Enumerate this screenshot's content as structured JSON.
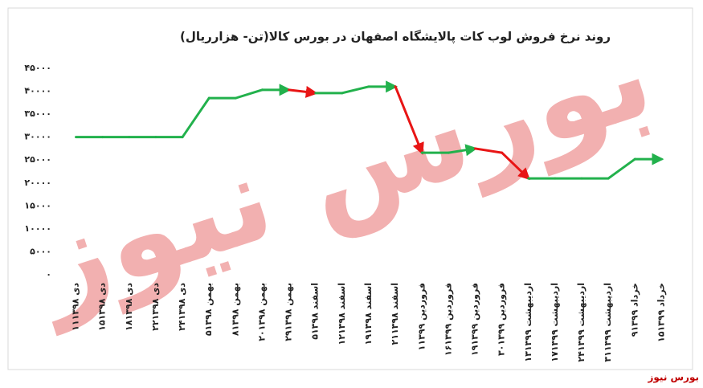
{
  "chart_data": {
    "type": "line",
    "title": "روند نرخ فروش لوب کات پالایشگاه اصفهان در بورس کالا(تن- هزارریال)",
    "watermark": "بورس نیوز",
    "source": "بورس نیوز",
    "categories": [
      "۱۱دی ۱۳۹۸",
      "۱۵دی ۱۳۹۸",
      "۱۸دی ۱۳۹۸",
      "۲۲دی ۱۳۹۸",
      "۲۴دی ۱۳۹۸",
      "۵بهمن ۱۳۹۸",
      "۸بهمن ۱۳۹۸",
      "۲۰بهمن ۱۳۹۸",
      "۲۹بهمن ۱۳۹۸",
      "۵اسفند ۱۳۹۸",
      "۱۲اسفند ۱۳۹۸",
      "۱۹اسفند ۱۳۹۸",
      "۲۱اسفند ۱۳۹۸",
      "۱فروردین ۱۳۹۹",
      "۱۶فروردین ۱۳۹۹",
      "۱۹فروردین ۱۳۹۹",
      "۳۰فروردین ۱۳۹۹",
      "۱۳اردیبهشت ۱۳۹۹",
      "۱۷اردیبهشت ۱۳۹۹",
      "۲۴اردیبهشت ۱۳۹۹",
      "۳۱اردیبهشت ۱۳۹۹",
      "۹خرداد ۱۳۹۹",
      "۱۵خرداد ۱۳۹۹"
    ],
    "values": [
      30000,
      30000,
      30000,
      30000,
      30000,
      38500,
      38500,
      40300,
      40300,
      39600,
      39600,
      41000,
      41000,
      26600,
      26600,
      27500,
      26600,
      21000,
      21000,
      21000,
      21000,
      25200,
      25200
    ],
    "color": "#22b14c",
    "decrease_color": "#e81515",
    "ylim": [
      0,
      45000
    ],
    "yticks": [
      {
        "value": 0,
        "label": "۰"
      },
      {
        "value": 5000,
        "label": "۵۰۰۰"
      },
      {
        "value": 10000,
        "label": "۱۰۰۰۰"
      },
      {
        "value": 15000,
        "label": "۱۵۰۰۰"
      },
      {
        "value": 20000,
        "label": "۲۰۰۰۰"
      },
      {
        "value": 25000,
        "label": "۲۵۰۰۰"
      },
      {
        "value": 30000,
        "label": "۳۰۰۰۰"
      },
      {
        "value": 35000,
        "label": "۳۵۰۰۰"
      },
      {
        "value": 40000,
        "label": "۴۰۰۰۰"
      },
      {
        "value": 45000,
        "label": "۴۵۰۰۰"
      }
    ],
    "grid": false
  }
}
